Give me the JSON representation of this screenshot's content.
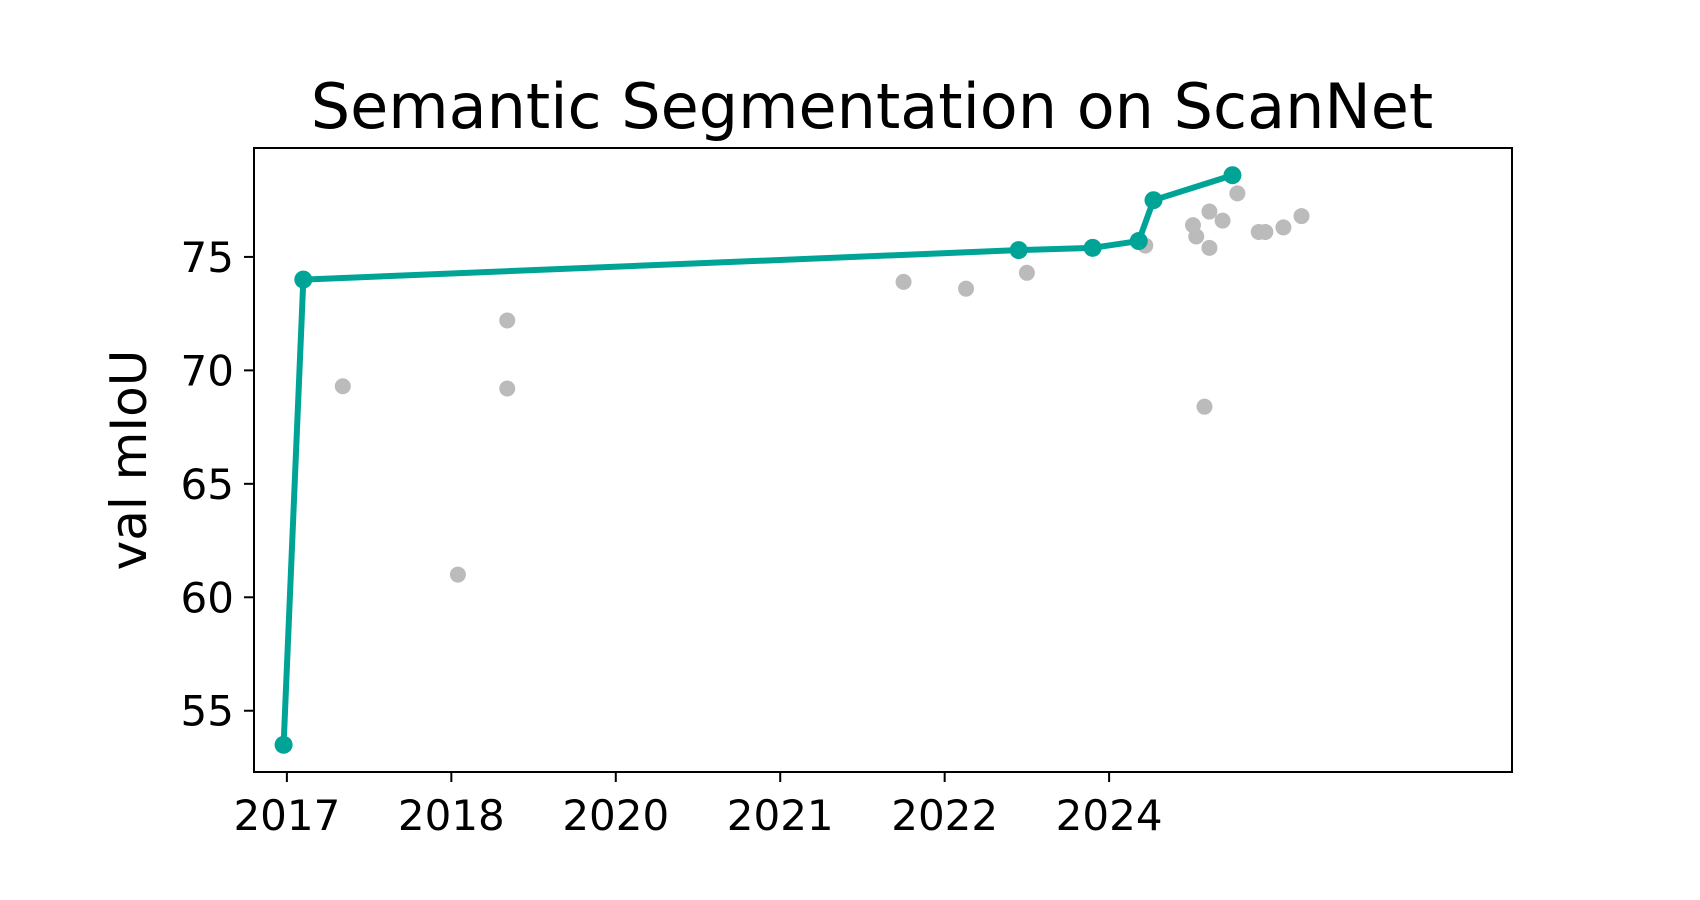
{
  "chart_data": {
    "type": "scatter",
    "title": "Semantic Segmentation on ScanNet",
    "xlabel": "",
    "ylabel": "val mIoU",
    "x_scale": "category-like (unevenly spaced years)",
    "xlim": [
      2016.8,
      2024.45
    ],
    "ylim": [
      52.3,
      79.8
    ],
    "x_ticks": [
      {
        "label": "2017",
        "value": 2017
      },
      {
        "label": "2018",
        "value": 2018
      },
      {
        "label": "2020",
        "value": 2019
      },
      {
        "label": "2021",
        "value": 2020
      },
      {
        "label": "2022",
        "value": 2021
      },
      {
        "label": "2024",
        "value": 2022
      }
    ],
    "y_ticks": [
      55,
      60,
      65,
      70,
      75
    ],
    "grid": false,
    "colors": {
      "sota": "#00a496",
      "other": "#bbbbbb"
    },
    "series": [
      {
        "role": "sota-frontier",
        "style": "line+markers",
        "points": [
          [
            2016.98,
            53.5
          ],
          [
            2017.1,
            74.0
          ],
          [
            2021.45,
            75.3
          ],
          [
            2021.9,
            75.4
          ],
          [
            2022.18,
            75.7
          ],
          [
            2022.27,
            77.5
          ],
          [
            2022.75,
            78.6
          ]
        ]
      },
      {
        "role": "other-results",
        "style": "markers",
        "points": [
          [
            2017.34,
            69.3
          ],
          [
            2018.04,
            61.0
          ],
          [
            2018.34,
            72.2
          ],
          [
            2018.34,
            69.2
          ],
          [
            2020.75,
            73.9
          ],
          [
            2021.13,
            73.6
          ],
          [
            2021.5,
            74.3
          ],
          [
            2022.22,
            75.5
          ],
          [
            2022.51,
            76.4
          ],
          [
            2022.53,
            75.9
          ],
          [
            2022.58,
            68.4
          ],
          [
            2022.61,
            77.0
          ],
          [
            2022.61,
            75.4
          ],
          [
            2022.69,
            76.6
          ],
          [
            2022.78,
            77.8
          ],
          [
            2022.91,
            76.1
          ],
          [
            2022.95,
            76.1
          ],
          [
            2023.06,
            76.3
          ],
          [
            2023.17,
            76.8
          ]
        ]
      }
    ]
  }
}
